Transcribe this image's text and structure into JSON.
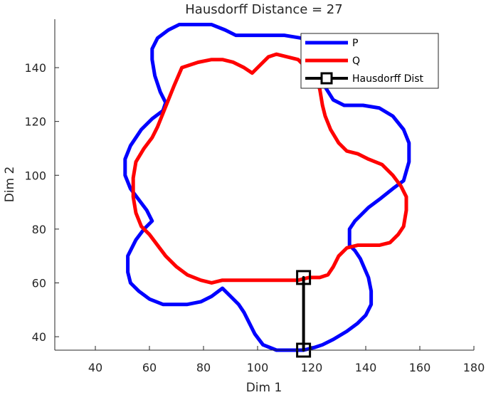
{
  "chart_data": {
    "type": "line",
    "title": "Hausdorff Distance = 27",
    "xlabel": "Dim 1",
    "ylabel": "Dim 2",
    "xlim": [
      25,
      180
    ],
    "ylim": [
      35,
      158
    ],
    "xticks": [
      40,
      60,
      80,
      100,
      120,
      140,
      160,
      180
    ],
    "yticks": [
      40,
      60,
      80,
      100,
      120,
      140
    ],
    "grid": false,
    "legend_position": "top-right",
    "series": [
      {
        "name": "P",
        "color": "#0000ff",
        "closed": true,
        "x": [
          75,
          83,
          88,
          92,
          97,
          103,
          110,
          116,
          120,
          121,
          123,
          128,
          132,
          135,
          139,
          145,
          150,
          154,
          156,
          156,
          154,
          150,
          145,
          141,
          138,
          136,
          134,
          134,
          136,
          138,
          141,
          142,
          142,
          140,
          137,
          133,
          128,
          124,
          121,
          117,
          112,
          107,
          102,
          99,
          97,
          95,
          93,
          90,
          87,
          83,
          79,
          74,
          70,
          65,
          60,
          56,
          53,
          52,
          52,
          55,
          58,
          61,
          59,
          56,
          53,
          51,
          51,
          53,
          57,
          61,
          65,
          66,
          64,
          62,
          61,
          61,
          63,
          67,
          71,
          75
        ],
        "y": [
          156,
          156,
          154,
          152,
          152,
          152,
          152,
          151,
          148,
          143,
          136,
          128,
          126,
          126,
          126,
          125,
          122,
          117,
          112,
          105,
          98,
          95,
          91,
          88,
          85,
          83,
          80,
          74,
          72,
          69,
          62,
          57,
          52,
          48,
          45,
          42,
          39,
          37,
          36,
          35,
          35,
          35,
          37,
          41,
          45,
          49,
          52,
          55,
          58,
          55,
          53,
          52,
          52,
          52,
          54,
          57,
          60,
          64,
          70,
          76,
          80,
          83,
          87,
          91,
          95,
          100,
          106,
          111,
          117,
          121,
          124,
          127,
          131,
          137,
          143,
          147,
          151,
          154,
          156,
          156
        ]
      },
      {
        "name": "Q",
        "color": "#ff0000",
        "closed": true,
        "x": [
          72,
          78,
          83,
          87,
          91,
          95,
          98,
          101,
          104,
          107,
          111,
          115,
          118,
          121,
          123,
          124,
          125,
          127,
          130,
          133,
          137,
          141,
          146,
          150,
          153,
          155,
          155,
          154,
          152,
          149,
          145,
          141,
          137,
          133,
          130,
          128,
          126,
          123,
          119,
          115,
          110,
          104,
          98,
          92,
          87,
          83,
          79,
          74,
          70,
          66,
          63,
          60,
          57,
          55,
          54,
          54,
          55,
          58,
          61,
          63,
          65,
          67,
          69,
          72
        ],
        "y": [
          140,
          142,
          143,
          143,
          142,
          140,
          138,
          141,
          144,
          145,
          144,
          143,
          140,
          137,
          132,
          126,
          122,
          117,
          112,
          109,
          108,
          106,
          104,
          100,
          96,
          92,
          87,
          81,
          78,
          75,
          74,
          74,
          74,
          73,
          70,
          66,
          63,
          62,
          62,
          61,
          61,
          61,
          61,
          61,
          61,
          60,
          61,
          63,
          66,
          70,
          74,
          78,
          81,
          86,
          92,
          99,
          105,
          110,
          114,
          118,
          123,
          128,
          133,
          140
        ]
      },
      {
        "name": "Hausdorff Dist",
        "color": "#000000",
        "closed": false,
        "marker": "square",
        "x": [
          117,
          117
        ],
        "y": [
          62,
          35
        ]
      }
    ]
  }
}
